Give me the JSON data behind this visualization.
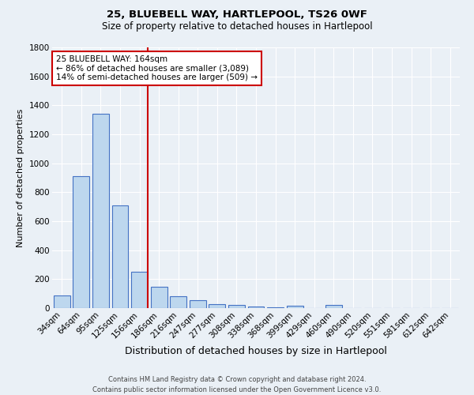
{
  "title1": "25, BLUEBELL WAY, HARTLEPOOL, TS26 0WF",
  "title2": "Size of property relative to detached houses in Hartlepool",
  "xlabel": "Distribution of detached houses by size in Hartlepool",
  "ylabel": "Number of detached properties",
  "footer": "Contains HM Land Registry data © Crown copyright and database right 2024.\nContains public sector information licensed under the Open Government Licence v3.0.",
  "bin_labels": [
    "34sqm",
    "64sqm",
    "95sqm",
    "125sqm",
    "156sqm",
    "186sqm",
    "216sqm",
    "247sqm",
    "277sqm",
    "308sqm",
    "338sqm",
    "368sqm",
    "399sqm",
    "429sqm",
    "460sqm",
    "490sqm",
    "520sqm",
    "551sqm",
    "581sqm",
    "612sqm",
    "642sqm"
  ],
  "bin_values": [
    85,
    910,
    1340,
    710,
    250,
    150,
    80,
    55,
    30,
    20,
    12,
    8,
    15,
    0,
    20,
    0,
    0,
    0,
    0,
    0,
    0
  ],
  "bar_color": "#bdd7ee",
  "bar_edge_color": "#4472c4",
  "red_line_bin_index": 4,
  "annotation_text": "25 BLUEBELL WAY: 164sqm\n← 86% of detached houses are smaller (3,089)\n14% of semi-detached houses are larger (509) →",
  "ylim": [
    0,
    1800
  ],
  "yticks": [
    0,
    200,
    400,
    600,
    800,
    1000,
    1200,
    1400,
    1600,
    1800
  ],
  "background_color": "#eaf0f6",
  "plot_bg_color": "#eaf0f6",
  "grid_color": "#ffffff",
  "annotation_box_color": "#ffffff",
  "annotation_box_edge": "#cc0000",
  "red_line_color": "#cc0000",
  "title1_fontsize": 9.5,
  "title2_fontsize": 8.5,
  "ylabel_fontsize": 8,
  "xlabel_fontsize": 9,
  "tick_fontsize": 7.5,
  "footer_fontsize": 6.0,
  "annotation_fontsize": 7.5
}
